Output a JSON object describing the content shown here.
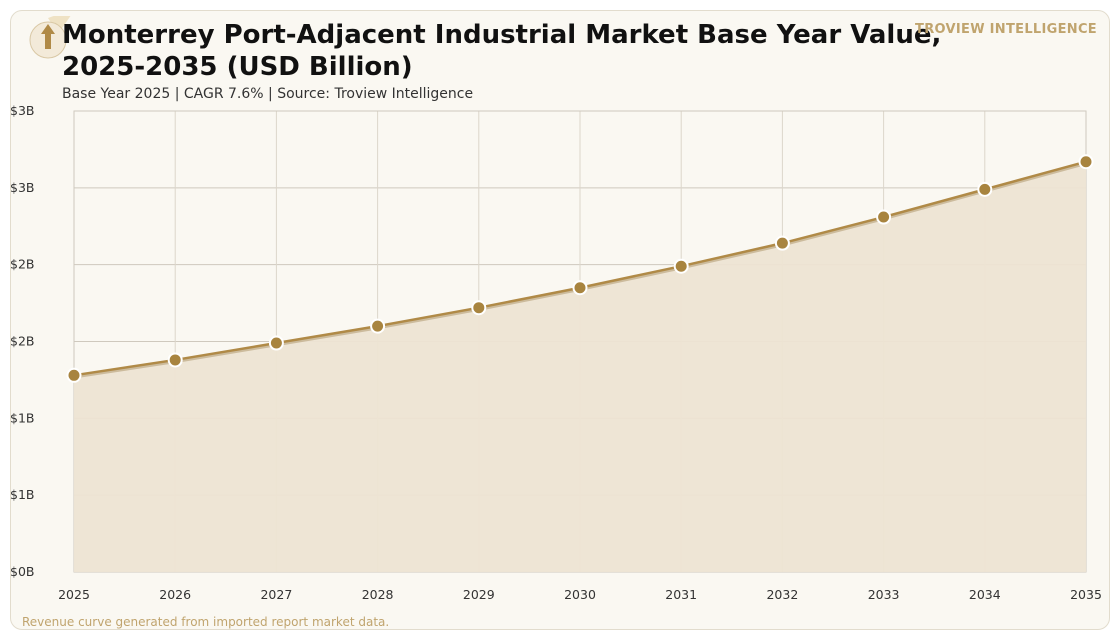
{
  "header": {
    "title": "Monterrey Port-Adjacent Industrial Market Base Year Value, 2025-2035 (USD Billion)",
    "subtitle": "Base Year 2025 | CAGR 7.6% | Source: Troview Intelligence",
    "brand": "TROVIEW INTELLIGENCE"
  },
  "footer": {
    "note": "Revenue curve generated from imported report market data."
  },
  "icons": {
    "logo": "upward-arrow-icon"
  },
  "colors": {
    "line": "#b08a47",
    "marker": "#a8843f",
    "area": "#ede4d3",
    "grid": "#cfc9be",
    "background": "#faf8f2",
    "brand": "#c0a46e"
  },
  "chart_data": {
    "type": "area",
    "title": "Monterrey Port-Adjacent Industrial Market Base Year Value, 2025-2035 (USD Billion)",
    "subtitle": "Base Year 2025 | CAGR 7.6% | Source: Troview Intelligence",
    "xlabel": "",
    "ylabel": "",
    "x": [
      2025,
      2026,
      2027,
      2028,
      2029,
      2030,
      2031,
      2032,
      2033,
      2034,
      2035
    ],
    "y_ticks": [
      {
        "value": 0,
        "label": "$0B"
      },
      {
        "value": 0.5,
        "label": "$1B"
      },
      {
        "value": 1.0,
        "label": "$1B"
      },
      {
        "value": 1.5,
        "label": "$2B"
      },
      {
        "value": 2.0,
        "label": "$2B"
      },
      {
        "value": 2.5,
        "label": "$3B"
      },
      {
        "value": 3.0,
        "label": "$3B"
      }
    ],
    "series": [
      {
        "values": [
          1.28,
          1.38,
          1.49,
          1.6,
          1.72,
          1.85,
          1.99,
          2.14,
          2.31,
          2.49,
          2.67
        ]
      }
    ],
    "ylim": [
      0,
      3.0
    ],
    "grid": true,
    "legend": "none"
  }
}
